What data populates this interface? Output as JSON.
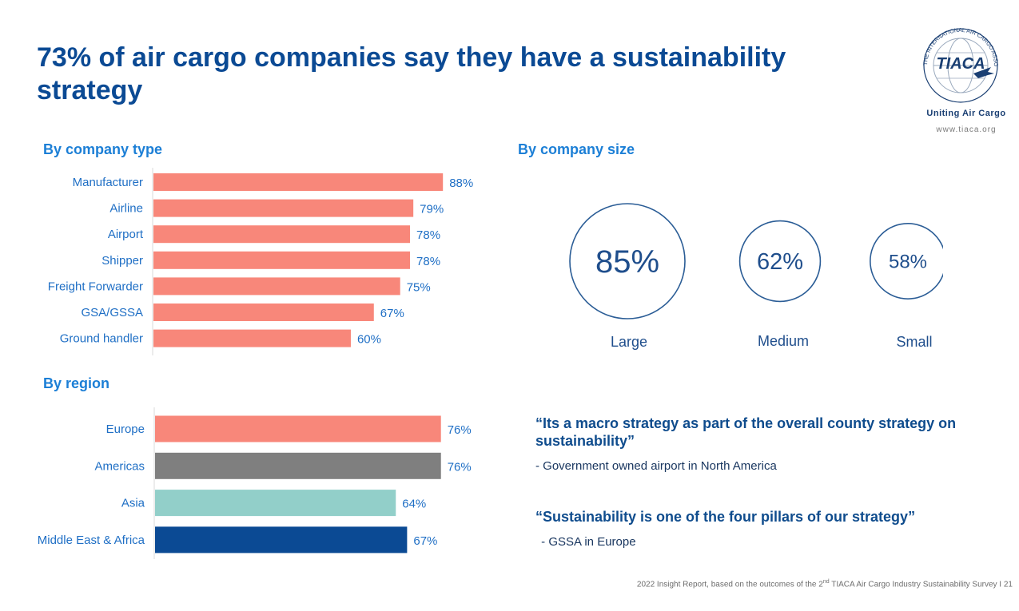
{
  "title": "73% of air cargo companies say they have a sustainability strategy",
  "logo": {
    "wordmark": "TIACA",
    "ring_text": "THE INTERNATIONAL AIR CARGO ASSOCIATION",
    "tagline": "Uniting Air Cargo",
    "url": "www.tiaca.org"
  },
  "colors": {
    "title": "#0b4a94",
    "section_head": "#1c7fd6",
    "bar_salmon": "#f8877a",
    "europe": "#f8877a",
    "americas": "#7f7f7f",
    "asia": "#92cfc9",
    "mea": "#0b4a94",
    "circle_stroke": "#2b5d96"
  },
  "sections": {
    "company_type": "By company type",
    "company_size": "By company size",
    "region": "By region"
  },
  "chart_data": [
    {
      "type": "bar",
      "orientation": "horizontal",
      "title": "By company type",
      "categories": [
        "Manufacturer",
        "Airline",
        "Airport",
        "Shipper",
        "Freight Forwarder",
        "GSA/GSSA",
        "Ground handler"
      ],
      "values": [
        88,
        79,
        78,
        78,
        75,
        67,
        60
      ],
      "labels": [
        "88%",
        "79%",
        "78%",
        "78%",
        "75%",
        "67%",
        "60%"
      ],
      "xlim": [
        0,
        100
      ]
    },
    {
      "type": "bar",
      "orientation": "horizontal",
      "title": "By region",
      "categories": [
        "Europe",
        "Americas",
        "Asia",
        "Middle East & Africa"
      ],
      "values": [
        76,
        76,
        64,
        67
      ],
      "labels": [
        "76%",
        "76%",
        "64%",
        "67%"
      ],
      "xlim": [
        0,
        100
      ]
    },
    {
      "type": "bubble",
      "title": "By company size",
      "categories": [
        "Large",
        "Medium",
        "Small"
      ],
      "values": [
        85,
        62,
        58
      ],
      "labels": [
        "85%",
        "62%",
        "58%"
      ]
    }
  ],
  "quotes": [
    {
      "text": "“Its a macro strategy as part of the overall county strategy on sustainability”",
      "attribution": "- Government owned airport in North America"
    },
    {
      "text": "“Sustainability is one of the four pillars of our strategy”",
      "attribution": " - GSSA in Europe"
    }
  ],
  "footer": {
    "pre": "2022 Insight Report, based on the outcomes of the 2",
    "sup": "nd",
    "post": " TIACA Air Cargo Industry Sustainability Survey I 21"
  }
}
